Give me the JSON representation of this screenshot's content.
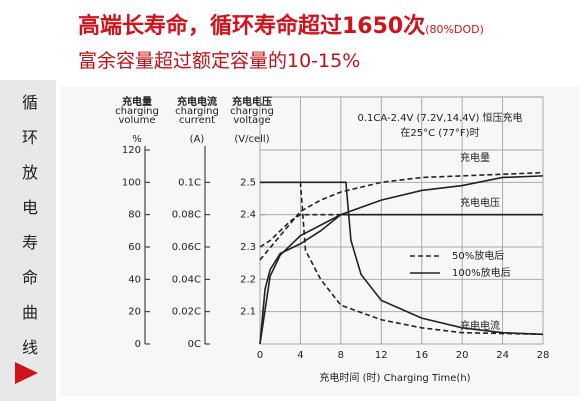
{
  "header": {
    "title": "高端长寿命，循环寿命超过1650次",
    "title_note": "(80%DOD)",
    "subtitle": "富余容量超过额定容量的10-15%"
  },
  "sidebar": {
    "label": "循环放电寿命曲线"
  },
  "chart_data": {
    "type": "line",
    "annotation": [
      "0.1CA-2.4V (7.2V,14.4V) 恒压充电",
      "在25°C (77°F)时"
    ],
    "xlabel": "充电时间 (时) Charging Time(h)",
    "xlim": [
      0,
      28
    ],
    "xticks": [
      0,
      4,
      8,
      12,
      16,
      20,
      24,
      28
    ],
    "ylabel": [
      "充电量",
      "charging",
      "volume"
    ],
    "yunit": "%",
    "ylim": [
      0,
      120
    ],
    "yticks": [
      0,
      20,
      40,
      60,
      80,
      100,
      120
    ],
    "y2label": [
      "充电电流",
      "charging",
      "current"
    ],
    "y2unit": "(A)",
    "y2lim": [
      0,
      0.12
    ],
    "y2ticks": [
      {
        "value": 0,
        "label": "0C"
      },
      {
        "value": 0.02,
        "label": "0.02C"
      },
      {
        "value": 0.04,
        "label": "0.04C"
      },
      {
        "value": 0.06,
        "label": "0.06C"
      },
      {
        "value": 0.08,
        "label": "0.08C"
      },
      {
        "value": 0.1,
        "label": "0.1C"
      }
    ],
    "y3label": [
      "充电电压",
      "charging",
      "voltage"
    ],
    "y3unit": "(V/cell)",
    "y3lim": [
      2.0,
      2.6
    ],
    "y3ticks": [
      2.1,
      2.2,
      2.3,
      2.4,
      2.5
    ],
    "grid": true,
    "curve_labels": [
      "充电量",
      "充电电压",
      "充电电流"
    ],
    "legend": [
      {
        "name": "50%放电后",
        "dashed": true
      },
      {
        "name": "100%放电后",
        "dashed": false
      }
    ],
    "series": [
      {
        "legend": 1,
        "axis": "y",
        "color": "#222222",
        "x": [
          0,
          1,
          2,
          4,
          8,
          12,
          16,
          20,
          24,
          28
        ],
        "values": [
          0,
          42,
          55,
          67,
          80,
          89,
          95,
          98,
          103,
          104
        ]
      },
      {
        "legend": 0,
        "axis": "y",
        "color": "#222222",
        "x": [
          0,
          2,
          4,
          6,
          8,
          12,
          16,
          20,
          28
        ],
        "values": [
          52,
          67,
          82,
          89,
          94,
          100,
          103,
          104,
          106
        ]
      },
      {
        "legend": 1,
        "axis": "y3",
        "color": "#222222",
        "x": [
          0,
          0.5,
          1,
          2,
          4,
          6,
          8,
          28
        ],
        "values": [
          2.0,
          2.17,
          2.23,
          2.28,
          2.31,
          2.35,
          2.4,
          2.4
        ]
      },
      {
        "legend": 0,
        "axis": "y3",
        "color": "#222222",
        "x": [
          0,
          1,
          2,
          3,
          4,
          28
        ],
        "values": [
          2.3,
          2.32,
          2.35,
          2.38,
          2.4,
          2.4
        ]
      },
      {
        "legend": 1,
        "axis": "y2",
        "color": "#222222",
        "x": [
          0,
          8.5,
          9,
          10,
          12,
          16,
          20,
          24,
          28
        ],
        "values": [
          0.1,
          0.1,
          0.064,
          0.043,
          0.027,
          0.016,
          0.01,
          0.007,
          0.006
        ]
      },
      {
        "legend": 0,
        "axis": "y2",
        "color": "#222222",
        "x": [
          0,
          4,
          4.5,
          6,
          8,
          12,
          16,
          20,
          28
        ],
        "values": [
          0.1,
          0.1,
          0.058,
          0.04,
          0.024,
          0.015,
          0.01,
          0.007,
          0.006
        ]
      }
    ]
  }
}
